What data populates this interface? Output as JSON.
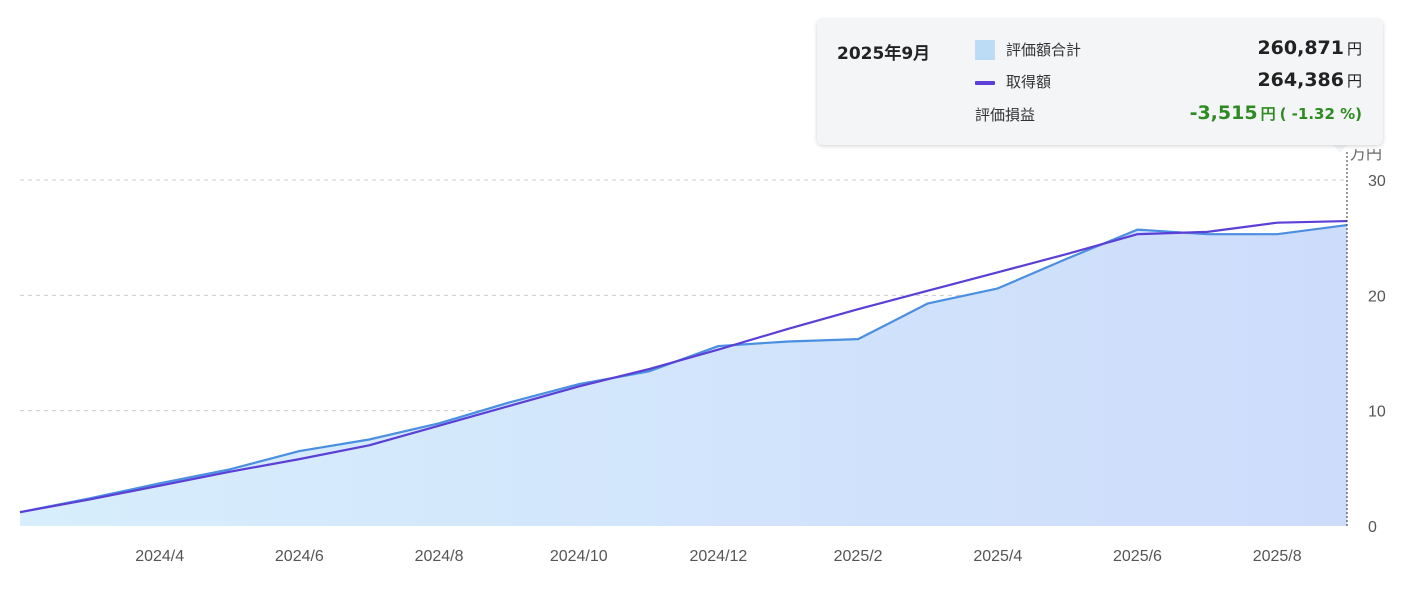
{
  "chart_data": {
    "type": "area",
    "unit": "万円",
    "x_labels": [
      "2024/4",
      "2024/6",
      "2024/8",
      "2024/10",
      "2024/12",
      "2025/2",
      "2025/4",
      "2025/6",
      "2025/8"
    ],
    "x": [
      "2024/2",
      "2024/3",
      "2024/4",
      "2024/5",
      "2024/6",
      "2024/7",
      "2024/8",
      "2024/9",
      "2024/10",
      "2024/11",
      "2024/12",
      "2025/1",
      "2025/2",
      "2025/3",
      "2025/4",
      "2025/5",
      "2025/6",
      "2025/7",
      "2025/8",
      "2025/9"
    ],
    "series": [
      {
        "name": "評価額合計",
        "type": "area",
        "color": "#4a8fe0",
        "values": [
          1.2,
          2.4,
          3.7,
          4.9,
          6.5,
          7.5,
          8.9,
          10.7,
          12.3,
          13.4,
          15.6,
          16.0,
          16.2,
          19.3,
          20.6,
          23.2,
          25.7,
          25.3,
          25.3,
          26.09
        ]
      },
      {
        "name": "取得額",
        "type": "line",
        "color": "#5b3fd6",
        "values": [
          1.2,
          2.3,
          3.5,
          4.7,
          5.8,
          7.0,
          8.7,
          10.4,
          12.1,
          13.6,
          15.3,
          17.1,
          18.8,
          20.4,
          22.0,
          23.6,
          25.3,
          25.5,
          26.3,
          26.44
        ]
      }
    ],
    "ylim": [
      0,
      30
    ],
    "y_ticks": [
      0,
      10,
      20,
      30
    ],
    "grid": true,
    "colors": {
      "area_left": "#d7eefc",
      "area_right": "#cddcfb",
      "grid": "#cccccc"
    }
  },
  "tooltip": {
    "date": "2025年9月",
    "rows": [
      {
        "label": "評価額合計",
        "value": "260,871",
        "unit": "円"
      },
      {
        "label": "取得額",
        "value": "264,386",
        "unit": "円"
      }
    ],
    "gain": {
      "label": "評価損益",
      "value": "-3,515",
      "unit": "円",
      "pct": "( -1.32 %)",
      "color": "#2e8b22"
    }
  }
}
